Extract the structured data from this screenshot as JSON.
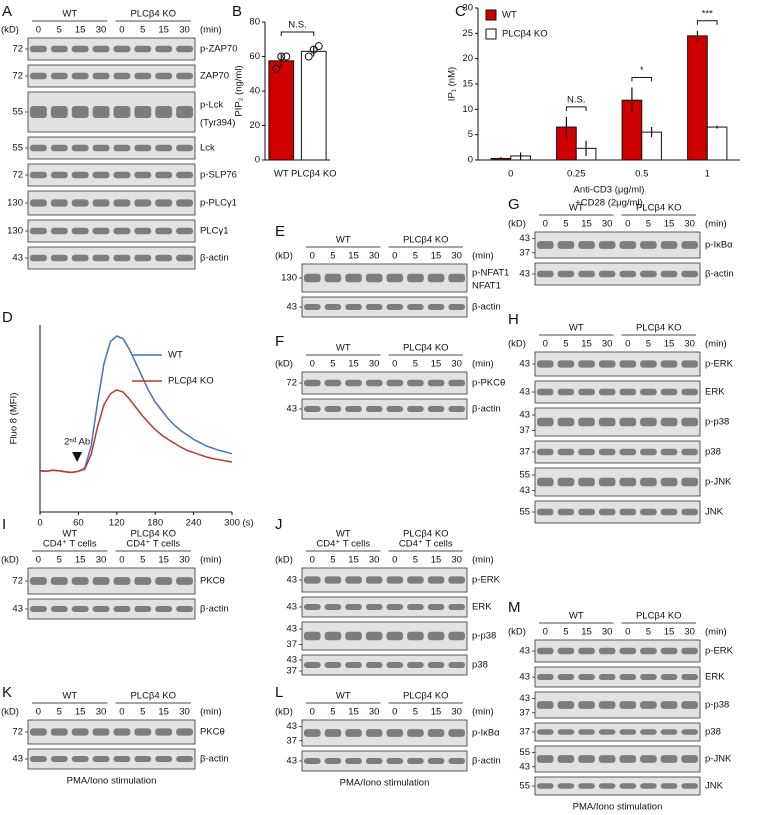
{
  "blots": [
    {
      "letter": "A",
      "kd": "(kD)",
      "min": "(min)",
      "groups": [
        {
          "label": [
            "WT"
          ]
        },
        {
          "label": [
            "PLCβ4 KO"
          ]
        }
      ],
      "times": [
        0,
        5,
        15,
        30,
        0,
        5,
        15,
        30
      ],
      "strips": [
        {
          "markers": [
            72
          ],
          "labels": [
            "p-ZAP70"
          ]
        },
        {
          "markers": [
            72
          ],
          "labels": [
            "ZAP70"
          ]
        },
        {
          "markers": [
            55
          ],
          "labels": [
            "p-Lck",
            "(Tyr394)"
          ]
        },
        {
          "markers": [
            55
          ],
          "labels": [
            "Lck"
          ]
        },
        {
          "markers": [
            72
          ],
          "labels": [
            "p-SLP76"
          ]
        },
        {
          "markers": [
            130
          ],
          "labels": [
            "p-PLCγ1"
          ]
        },
        {
          "markers": [
            130
          ],
          "labels": [
            "PLCγ1"
          ]
        },
        {
          "markers": [
            43
          ],
          "labels": [
            "β-actin"
          ]
        }
      ]
    },
    {
      "letter": "E",
      "kd": "(kD)",
      "min": "(min)",
      "groups": [
        {
          "label": [
            "WT"
          ]
        },
        {
          "label": [
            "PLCβ4 KO"
          ]
        }
      ],
      "times": [
        0,
        5,
        15,
        30,
        0,
        5,
        15,
        30
      ],
      "strips": [
        {
          "markers": [
            130
          ],
          "labels": [
            "p-NFAT1",
            "NFAT1"
          ]
        },
        {
          "markers": [
            43
          ],
          "labels": [
            "β-actin"
          ]
        }
      ]
    },
    {
      "letter": "F",
      "kd": "(kD)",
      "min": "(min)",
      "groups": [
        {
          "label": [
            "WT"
          ]
        },
        {
          "label": [
            "PLCβ4 KO"
          ]
        }
      ],
      "times": [
        0,
        5,
        15,
        30,
        0,
        5,
        15,
        30
      ],
      "strips": [
        {
          "markers": [
            72
          ],
          "labels": [
            "p-PKCθ"
          ]
        },
        {
          "markers": [
            43
          ],
          "labels": [
            "β-actin"
          ]
        }
      ]
    },
    {
      "letter": "G",
      "kd": "(kD)",
      "min": "(min)",
      "groups": [
        {
          "label": [
            "WT"
          ]
        },
        {
          "label": [
            "PLCβ4 KO"
          ]
        }
      ],
      "times": [
        0,
        5,
        15,
        30,
        0,
        5,
        15,
        30
      ],
      "strips": [
        {
          "markers": [
            43,
            37
          ],
          "labels": [
            "p-IκBα"
          ]
        },
        {
          "markers": [
            43
          ],
          "labels": [
            "β-actin"
          ]
        }
      ]
    },
    {
      "letter": "H",
      "kd": "(kD)",
      "min": "(min)",
      "groups": [
        {
          "label": [
            "WT"
          ]
        },
        {
          "label": [
            "PLCβ4 KO"
          ]
        }
      ],
      "times": [
        0,
        5,
        15,
        30,
        0,
        5,
        15,
        30
      ],
      "strips": [
        {
          "markers": [
            43
          ],
          "labels": [
            "p-ERK"
          ]
        },
        {
          "markers": [
            43
          ],
          "labels": [
            "ERK"
          ]
        },
        {
          "markers": [
            43,
            37
          ],
          "labels": [
            "p-p38"
          ]
        },
        {
          "markers": [
            37
          ],
          "labels": [
            "p38"
          ]
        },
        {
          "markers": [
            55,
            43
          ],
          "labels": [
            "p-JNK"
          ]
        },
        {
          "markers": [
            55
          ],
          "labels": [
            "JNK"
          ]
        }
      ]
    },
    {
      "letter": "I",
      "kd": "(kD)",
      "min": "(min)",
      "groups": [
        {
          "label": [
            "WT",
            "CD4⁺ T cells"
          ]
        },
        {
          "label": [
            "PLCβ4 KO",
            "CD4⁺ T cells"
          ]
        }
      ],
      "times": [
        0,
        5,
        15,
        30,
        0,
        5,
        15,
        30
      ],
      "strips": [
        {
          "markers": [
            72
          ],
          "labels": [
            "PKCθ"
          ]
        },
        {
          "markers": [
            43
          ],
          "labels": [
            "β-actin"
          ]
        }
      ]
    },
    {
      "letter": "J",
      "kd": "(kD)",
      "min": "(min)",
      "groups": [
        {
          "label": [
            "WT",
            "CD4⁺ T cells"
          ]
        },
        {
          "label": [
            "PLCβ4 KO",
            "CD4⁺ T cells"
          ]
        }
      ],
      "times": [
        0,
        5,
        15,
        30,
        0,
        5,
        15,
        30
      ],
      "strips": [
        {
          "markers": [
            43
          ],
          "labels": [
            "p-ERK"
          ]
        },
        {
          "markers": [
            43
          ],
          "labels": [
            "ERK"
          ]
        },
        {
          "markers": [
            43,
            37
          ],
          "labels": [
            "p-p38"
          ]
        },
        {
          "markers": [
            43,
            37
          ],
          "labels": [
            "p38"
          ]
        }
      ]
    },
    {
      "letter": "K",
      "kd": "(kD)",
      "min": "(min)",
      "groups": [
        {
          "label": [
            "WT"
          ]
        },
        {
          "label": [
            "PLCβ4 KO"
          ]
        }
      ],
      "times": [
        0,
        5,
        15,
        30,
        0,
        5,
        15,
        30
      ],
      "strips": [
        {
          "markers": [
            72
          ],
          "labels": [
            "PKCθ"
          ]
        },
        {
          "markers": [
            43
          ],
          "labels": [
            "β-actin"
          ]
        }
      ],
      "footer": "PMA/Iono stimulation"
    },
    {
      "letter": "L",
      "kd": "(kD)",
      "min": "(min)",
      "groups": [
        {
          "label": [
            "WT"
          ]
        },
        {
          "label": [
            "PLCβ4 KO"
          ]
        }
      ],
      "times": [
        0,
        5,
        15,
        30,
        0,
        5,
        15,
        30
      ],
      "strips": [
        {
          "markers": [
            43,
            37
          ],
          "labels": [
            "p-IκBα"
          ]
        },
        {
          "markers": [
            43
          ],
          "labels": [
            "β-actin"
          ]
        }
      ],
      "footer": "PMA/Iono stimulation"
    },
    {
      "letter": "M",
      "kd": "(kD)",
      "min": "(min)",
      "groups": [
        {
          "label": [
            "WT"
          ]
        },
        {
          "label": [
            "PLCβ4 KO"
          ]
        }
      ],
      "times": [
        0,
        5,
        15,
        30,
        0,
        5,
        15,
        30
      ],
      "strips": [
        {
          "markers": [
            43
          ],
          "labels": [
            "p-ERK"
          ]
        },
        {
          "markers": [
            43
          ],
          "labels": [
            "ERK"
          ]
        },
        {
          "markers": [
            43,
            37
          ],
          "labels": [
            "p-p38"
          ]
        },
        {
          "markers": [
            37
          ],
          "labels": [
            "p38"
          ]
        },
        {
          "markers": [
            55,
            43
          ],
          "labels": [
            "p-JNK"
          ]
        },
        {
          "markers": [
            55
          ],
          "labels": [
            "JNK"
          ]
        }
      ],
      "footer": "PMA/Iono stimulation"
    }
  ],
  "chart_data": [
    {
      "type": "bar",
      "letter": "B",
      "ylabel": "PIP₂ (ng/ml)",
      "categories": [
        "WT",
        "PLCβ4 KO"
      ],
      "values": [
        57.5,
        63
      ],
      "errors": [
        4,
        3
      ],
      "points": [
        [
          53,
          60,
          60
        ],
        [
          60,
          64,
          66
        ]
      ],
      "colors": [
        "#d00000",
        "#ffffff"
      ],
      "ylim": [
        0,
        80
      ],
      "yticks": [
        0,
        20,
        40,
        60,
        80
      ],
      "annotations": [
        "N.S."
      ]
    },
    {
      "type": "grouped_bar",
      "letter": "C",
      "ylabel": "IP₁ (nM)",
      "xlabel": [
        "Anti-CD3 (μg/ml)",
        "+CD28 (2μg/ml)"
      ],
      "categories": [
        "0",
        "0.25",
        "0.5",
        "1"
      ],
      "series": [
        {
          "name": "WT",
          "color": "#d00000",
          "values": [
            0.3,
            6.5,
            11.8,
            24.5
          ],
          "errors": [
            0.3,
            2,
            2.5,
            1
          ]
        },
        {
          "name": "PLCβ4 KO",
          "color": "#ffffff",
          "values": [
            0.8,
            2.3,
            5.5,
            6.5
          ],
          "errors": [
            0.7,
            1.5,
            1,
            0.3
          ]
        }
      ],
      "ylim": [
        0,
        30
      ],
      "yticks": [
        0,
        5,
        10,
        15,
        20,
        25,
        30
      ],
      "annotations": [
        "N.S.",
        "*",
        "***"
      ]
    },
    {
      "type": "line",
      "letter": "D",
      "ylabel": "Fluo 8 (MFI)",
      "xlabel": "(s)",
      "annotation": "2ⁿᵈ Ab",
      "annotation_x": 58,
      "x": [
        0,
        10,
        20,
        30,
        40,
        50,
        60,
        70,
        80,
        90,
        100,
        110,
        120,
        130,
        140,
        150,
        160,
        170,
        180,
        190,
        200,
        210,
        220,
        230,
        240,
        250,
        260,
        270,
        280,
        290,
        300
      ],
      "series": [
        {
          "name": "WT",
          "color": "#4472c4",
          "values": [
            75,
            74,
            76,
            75,
            73,
            72,
            74,
            80,
            120,
            200,
            270,
            310,
            320,
            315,
            295,
            270,
            245,
            220,
            200,
            185,
            170,
            158,
            148,
            140,
            132,
            126,
            120,
            116,
            112,
            109,
            106
          ]
        },
        {
          "name": "PLCβ4 KO",
          "color": "#c0392b",
          "values": [
            75,
            74,
            76,
            75,
            73,
            72,
            74,
            78,
            105,
            155,
            195,
            215,
            222,
            218,
            205,
            190,
            175,
            162,
            150,
            140,
            132,
            125,
            118,
            112,
            108,
            104,
            100,
            97,
            95,
            93,
            91
          ]
        }
      ],
      "xlim": [
        0,
        300
      ],
      "xticks": [
        0,
        60,
        120,
        180,
        240,
        300
      ],
      "ylim": [
        0,
        340
      ]
    }
  ]
}
